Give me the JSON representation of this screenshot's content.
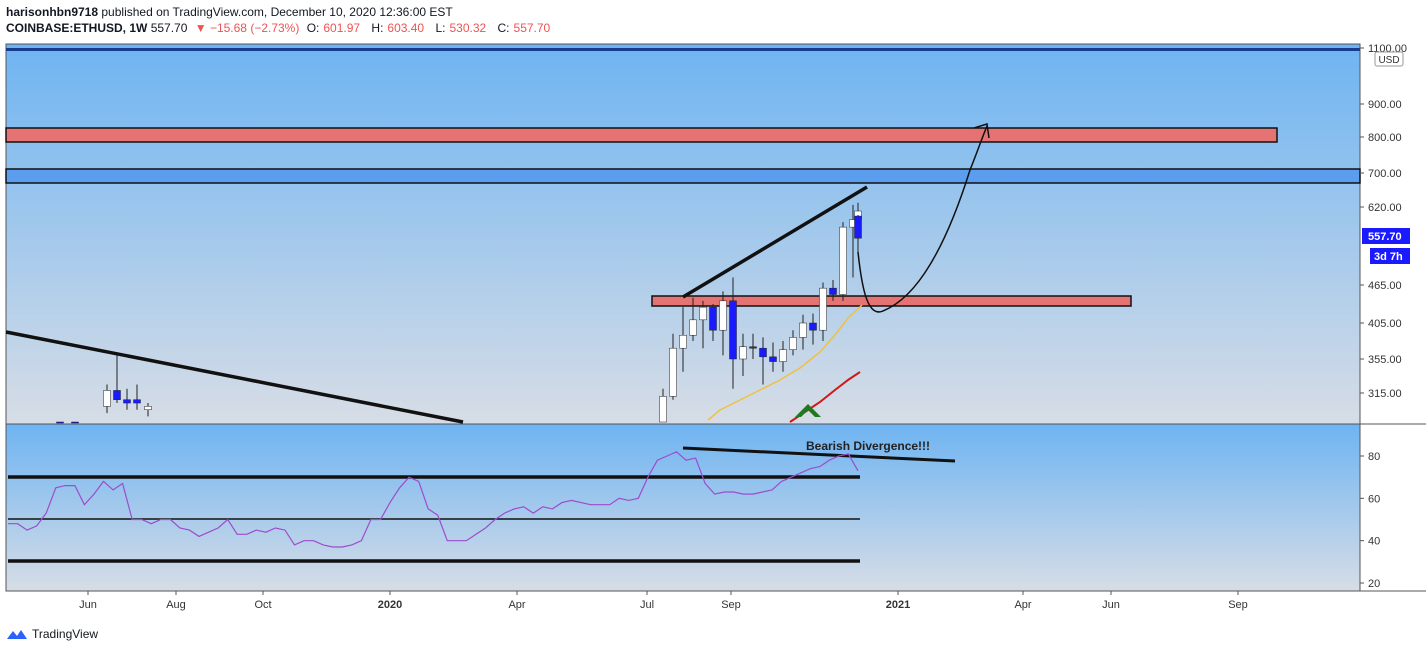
{
  "header": {
    "publisher": "harisonhbn9718",
    "published_text": "published on TradingView.com, December 10, 2020 12:36:00 EST",
    "symbol": "COINBASE:ETHUSD, 1W",
    "last": "557.70",
    "change": "▼ −15.68 (−2.73%)",
    "open_label": "O:",
    "open": "601.97",
    "high_label": "H:",
    "high": "603.40",
    "low_label": "L:",
    "low": "530.32",
    "close_label": "C:",
    "close": "557.70"
  },
  "footer": {
    "brand": "TradingView"
  },
  "colors": {
    "bg_top": "#6eb4f2",
    "bg_bottom": "#d7dde6",
    "candle_up": "#ffffff",
    "candle_down": "#1a1aff",
    "resistance_zone": "#e57373",
    "blue_zone": "#5b9ef0",
    "ema_fast": "#f0c040",
    "ema_slow": "#d01818",
    "rsi": "#9c4dcc"
  },
  "chart_data": [
    {
      "type": "candlestick",
      "symbol": "COINBASE:ETHUSD",
      "interval": "1W",
      "currency": "USD",
      "y_ticks": [
        1100,
        900,
        800,
        700,
        620,
        465,
        405,
        355,
        315
      ],
      "y_tick_labels": [
        "1100.00",
        "900.00",
        "800.00",
        "700.00",
        "620.00",
        "465.00",
        "405.00",
        "355.00",
        "315.00"
      ],
      "x_ticks": [
        "Jun",
        "Aug",
        "Oct",
        "2020",
        "Apr",
        "Jul",
        "Sep",
        "2021",
        "Apr",
        "Jun",
        "Sep"
      ],
      "last_price_label": "557.70",
      "countdown_label": "3d 7h",
      "candles": [
        {
          "o": 295,
          "h": 325,
          "l": 285,
          "c": 318
        },
        {
          "o": 318,
          "h": 360,
          "l": 300,
          "c": 305
        },
        {
          "o": 305,
          "h": 320,
          "l": 290,
          "c": 300
        },
        {
          "o": 305,
          "h": 325,
          "l": 290,
          "c": 300
        },
        {
          "o": 290,
          "h": 300,
          "l": 280,
          "c": 295
        },
        {
          "o": 250,
          "h": 255,
          "l": 240,
          "c": 248
        },
        {
          "o": 245,
          "h": 250,
          "l": 238,
          "c": 243
        },
        {
          "o": 260,
          "h": 320,
          "l": 255,
          "c": 310
        },
        {
          "o": 310,
          "h": 390,
          "l": 305,
          "c": 370
        },
        {
          "o": 370,
          "h": 430,
          "l": 340,
          "c": 388
        },
        {
          "o": 388,
          "h": 445,
          "l": 380,
          "c": 410
        },
        {
          "o": 410,
          "h": 440,
          "l": 370,
          "c": 430
        },
        {
          "o": 430,
          "h": 435,
          "l": 380,
          "c": 395
        },
        {
          "o": 395,
          "h": 455,
          "l": 360,
          "c": 440
        },
        {
          "o": 440,
          "h": 480,
          "l": 320,
          "c": 355
        },
        {
          "o": 355,
          "h": 390,
          "l": 335,
          "c": 372
        },
        {
          "o": 372,
          "h": 390,
          "l": 355,
          "c": 370
        },
        {
          "o": 370,
          "h": 385,
          "l": 325,
          "c": 358
        },
        {
          "o": 358,
          "h": 378,
          "l": 340,
          "c": 352
        },
        {
          "o": 352,
          "h": 380,
          "l": 340,
          "c": 368
        },
        {
          "o": 368,
          "h": 395,
          "l": 360,
          "c": 385
        },
        {
          "o": 385,
          "h": 418,
          "l": 368,
          "c": 405
        },
        {
          "o": 405,
          "h": 420,
          "l": 375,
          "c": 395
        },
        {
          "o": 395,
          "h": 470,
          "l": 380,
          "c": 460
        },
        {
          "o": 460,
          "h": 475,
          "l": 440,
          "c": 450
        },
        {
          "o": 450,
          "h": 590,
          "l": 440,
          "c": 580
        },
        {
          "o": 580,
          "h": 625,
          "l": 480,
          "c": 595
        },
        {
          "o": 595,
          "h": 630,
          "l": 560,
          "c": 612
        },
        {
          "o": 602,
          "h": 604,
          "l": 530,
          "c": 558
        }
      ]
    },
    {
      "type": "line",
      "name": "RSI",
      "y_ticks": [
        80,
        60,
        40,
        20
      ],
      "y_tick_labels": [
        "80",
        "60",
        "40",
        "20"
      ],
      "levels": [
        70,
        50,
        30
      ],
      "values": [
        48,
        48,
        45,
        47,
        53,
        65,
        66,
        66,
        57,
        62,
        68,
        64,
        67,
        50,
        50,
        48,
        50,
        50,
        46,
        45,
        42,
        44,
        46,
        50,
        43,
        43,
        45,
        44,
        46,
        45,
        38,
        40,
        40,
        38,
        37,
        37,
        38,
        40,
        50,
        50,
        58,
        65,
        70,
        68,
        55,
        52,
        40,
        40,
        40,
        43,
        46,
        50,
        53,
        55,
        56,
        53,
        56,
        55,
        58,
        59,
        58,
        57,
        57,
        57,
        60,
        59,
        60,
        70,
        78,
        80,
        82,
        78,
        79,
        67,
        62,
        63,
        63,
        62,
        62,
        63,
        64,
        68,
        70,
        72,
        74,
        75,
        78,
        80,
        81,
        73
      ]
    }
  ],
  "annotations": {
    "divergence_label": "Bearish Divergence!!!"
  }
}
